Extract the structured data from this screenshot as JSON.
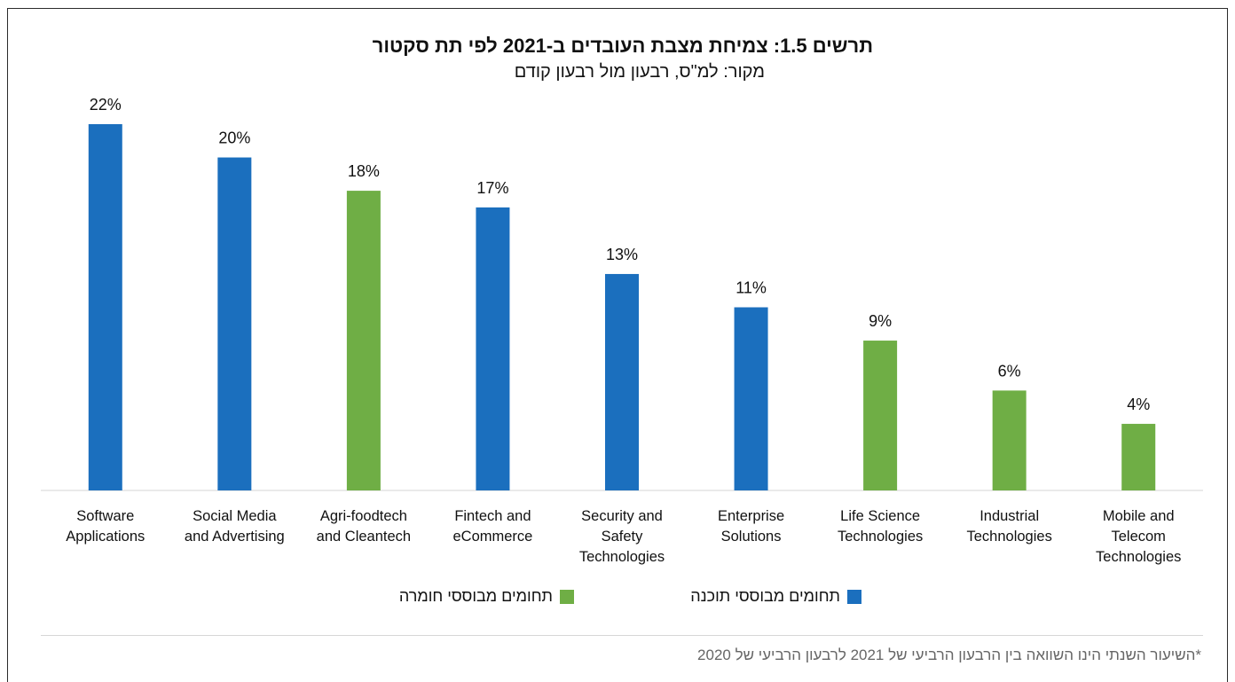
{
  "title": "תרשים 1.5: צמיחת מצבת העובדים ב-2021 לפי תת סקטור",
  "subtitle": "מקור: למ\"ס, רבעון מול רבעון קודם",
  "legend": {
    "software": {
      "label": "תחומים מבוססי תוכנה",
      "color": "#1b6fbe"
    },
    "hardware": {
      "label": "תחומים מבוססי חומרה",
      "color": "#6fae45"
    }
  },
  "footnote": "*השיעור השנתי הינו השוואה בין הרבעון הרביעי של 2021 לרבעון הרביעי של 2020",
  "chart_data": {
    "type": "bar",
    "title": "תרשים 1.5: צמיחת מצבת העובדים ב-2021 לפי תת סקטור",
    "subtitle": "מקור: למ\"ס, רבעון מול רבעון קודם",
    "xlabel": "",
    "ylabel": "",
    "ylim": [
      0,
      22
    ],
    "grid": false,
    "legend_position": "bottom",
    "value_format": "percent",
    "categories": [
      "Software Applications",
      "Social Media and Advertising",
      "Agri-foodtech and Cleantech",
      "Fintech and eCommerce",
      "Security and Safety Technologies",
      "Enterprise Solutions",
      "Life Science Technologies",
      "Industrial Technologies",
      "Mobile and Telecom Technologies"
    ],
    "values": [
      22,
      20,
      18,
      17,
      13,
      11,
      9,
      6,
      4
    ],
    "data_labels": [
      "22%",
      "20%",
      "18%",
      "17%",
      "13%",
      "11%",
      "9%",
      "6%",
      "4%"
    ],
    "bar_colors": [
      "#1b6fbe",
      "#1b6fbe",
      "#6fae45",
      "#1b6fbe",
      "#1b6fbe",
      "#1b6fbe",
      "#6fae45",
      "#6fae45",
      "#6fae45"
    ],
    "series": [
      {
        "name": "תחומים מבוססי תוכנה",
        "color": "#1b6fbe",
        "values": [
          22,
          20,
          null,
          17,
          13,
          11,
          null,
          null,
          null
        ]
      },
      {
        "name": "תחומים מבוססי חומרה",
        "color": "#6fae45",
        "values": [
          null,
          null,
          18,
          null,
          null,
          null,
          9,
          6,
          4
        ]
      }
    ]
  }
}
